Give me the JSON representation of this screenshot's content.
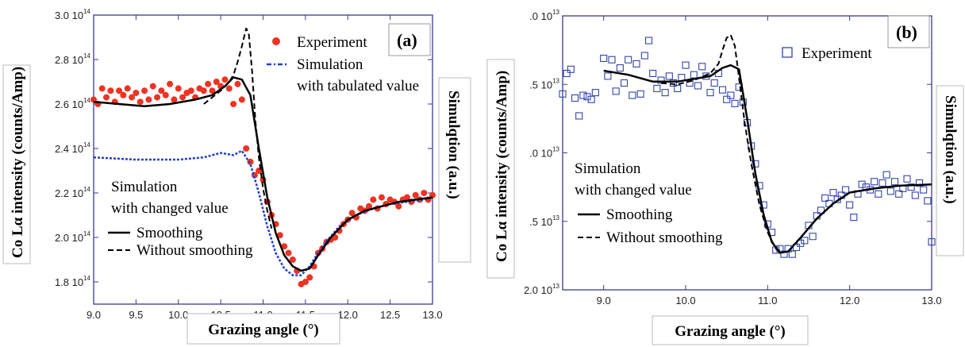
{
  "colors": {
    "experiment_a": "#ee3322",
    "experiment_b": "#3344aa",
    "simulation_tabulated": "#1f3fcf",
    "smoothing": "#000000",
    "without_smoothing": "#000000",
    "frame": "#3a3a8c"
  },
  "chart_data": [
    {
      "type": "scatter",
      "panel_label": "(a)",
      "xlabel": "Grazing angle (°)",
      "ylabel": "Co Lα intensity (counts/Amp)",
      "y2label": "Simulqtion (a.u.)",
      "xlim": [
        9.0,
        13.0
      ],
      "ylim": [
        170000000000000.0,
        300000000000000.0
      ],
      "x_ticks": [
        "9.0",
        "9.5",
        "10.0",
        "10.5",
        "11.0",
        "11.5",
        "12.0",
        "12.5",
        "13.0"
      ],
      "y_ticks": [
        {
          "mantissa": "3.0 10",
          "exp": "14",
          "value": 300000000000000.0
        },
        {
          "mantissa": "2.8 10",
          "exp": "14",
          "value": 280000000000000.0
        },
        {
          "mantissa": "2.6 10",
          "exp": "14",
          "value": 260000000000000.0
        },
        {
          "mantissa": "2.4 10",
          "exp": "14",
          "value": 240000000000000.0
        },
        {
          "mantissa": "2.2 10",
          "exp": "14",
          "value": 220000000000000.0
        },
        {
          "mantissa": "2.0 10",
          "exp": "14",
          "value": 200000000000000.0
        },
        {
          "mantissa": "1.8 10",
          "exp": "14",
          "value": 180000000000000.0
        }
      ],
      "legend": {
        "experiment": "Experiment",
        "simulation_line1": "Simulation",
        "simulation_line2": "with tabulated value",
        "changed_line1": "Simulation",
        "changed_line2": "with changed value",
        "smoothing": "Smoothing",
        "without_smoothing": "Without smoothing"
      },
      "series": [
        {
          "name": "Experiment",
          "kind": "points",
          "x": [
            9.0,
            9.05,
            9.1,
            9.15,
            9.2,
            9.25,
            9.3,
            9.35,
            9.4,
            9.45,
            9.5,
            9.55,
            9.6,
            9.65,
            9.7,
            9.75,
            9.8,
            9.85,
            9.9,
            9.95,
            10.0,
            10.05,
            10.1,
            10.15,
            10.2,
            10.25,
            10.3,
            10.35,
            10.4,
            10.45,
            10.5,
            10.55,
            10.6,
            10.65,
            10.7,
            10.75,
            10.8,
            10.85,
            10.9,
            10.95,
            11.0,
            11.05,
            11.1,
            11.15,
            11.2,
            11.25,
            11.3,
            11.35,
            11.4,
            11.45,
            11.5,
            11.55,
            11.6,
            11.65,
            11.7,
            11.75,
            11.8,
            11.85,
            11.9,
            11.95,
            12.0,
            12.05,
            12.1,
            12.15,
            12.2,
            12.25,
            12.3,
            12.35,
            12.4,
            12.45,
            12.5,
            12.55,
            12.6,
            12.65,
            12.7,
            12.75,
            12.8,
            12.85,
            12.9,
            12.95,
            13.0
          ],
          "y": [
            262000000000000.0,
            260000000000000.0,
            267000000000000.0,
            263000000000000.0,
            266000000000000.0,
            261000000000000.0,
            266000000000000.0,
            264000000000000.0,
            267000000000000.0,
            263000000000000.0,
            265000000000000.0,
            261000000000000.0,
            266000000000000.0,
            262000000000000.0,
            268000000000000.0,
            263000000000000.0,
            266000000000000.0,
            264000000000000.0,
            269000000000000.0,
            262000000000000.0,
            267000000000000.0,
            263000000000000.0,
            265000000000000.0,
            266000000000000.0,
            263000000000000.0,
            267000000000000.0,
            266000000000000.0,
            269000000000000.0,
            266000000000000.0,
            270000000000000.0,
            268000000000000.0,
            271000000000000.0,
            267000000000000.0,
            260000000000000.0,
            269000000000000.0,
            262000000000000.0,
            240000000000000.0,
            234000000000000.0,
            228000000000000.0,
            230000000000000.0,
            226000000000000.0,
            216000000000000.0,
            210000000000000.0,
            206000000000000.0,
            201000000000000.0,
            196000000000000.0,
            193000000000000.0,
            190000000000000.0,
            185000000000000.0,
            179000000000000.0,
            180000000000000.0,
            182000000000000.0,
            187000000000000.0,
            193000000000000.0,
            195000000000000.0,
            198000000000000.0,
            199000000000000.0,
            200000000000000.0,
            203000000000000.0,
            206000000000000.0,
            208000000000000.0,
            211000000000000.0,
            209000000000000.0,
            213000000000000.0,
            212000000000000.0,
            214000000000000.0,
            217000000000000.0,
            213000000000000.0,
            218000000000000.0,
            215000000000000.0,
            217000000000000.0,
            216000000000000.0,
            214000000000000.0,
            217000000000000.0,
            218000000000000.0,
            216000000000000.0,
            219000000000000.0,
            217000000000000.0,
            220000000000000.0,
            217000000000000.0,
            219000000000000.0
          ]
        },
        {
          "name": "Simulation with tabulated value",
          "kind": "dash-dot",
          "x": [
            9.0,
            9.5,
            10.0,
            10.3,
            10.5,
            10.65,
            10.75,
            10.85,
            10.95,
            11.05,
            11.15,
            11.25,
            11.35,
            11.45,
            11.55,
            11.7,
            11.9,
            12.1,
            12.3,
            12.5,
            12.7,
            12.9,
            13.0
          ],
          "y": [
            236000000000000.0,
            235000000000000.0,
            235000000000000.0,
            236000000000000.0,
            238000000000000.0,
            237000000000000.0,
            239000000000000.0,
            233000000000000.0,
            220000000000000.0,
            205000000000000.0,
            193000000000000.0,
            186000000000000.0,
            183000000000000.0,
            183000000000000.0,
            187000000000000.0,
            196000000000000.0,
            205000000000000.0,
            210000000000000.0,
            213000000000000.0,
            215000000000000.0,
            216000000000000.0,
            217000000000000.0,
            218000000000000.0
          ]
        },
        {
          "name": "Smoothing",
          "kind": "solid",
          "x": [
            9.0,
            9.3,
            9.6,
            9.9,
            10.2,
            10.4,
            10.55,
            10.65,
            10.75,
            10.85,
            10.95,
            11.05,
            11.15,
            11.25,
            11.35,
            11.45,
            11.55,
            11.65,
            11.8,
            12.0,
            12.2,
            12.4,
            12.6,
            12.8,
            13.0
          ],
          "y": [
            261000000000000.0,
            260000000000000.0,
            259000000000000.0,
            260000000000000.0,
            262000000000000.0,
            264000000000000.0,
            268000000000000.0,
            272000000000000.0,
            271000000000000.0,
            264000000000000.0,
            240000000000000.0,
            218000000000000.0,
            202000000000000.0,
            192000000000000.0,
            187000000000000.0,
            185000000000000.0,
            186000000000000.0,
            192000000000000.0,
            200000000000000.0,
            208000000000000.0,
            212000000000000.0,
            214000000000000.0,
            216000000000000.0,
            217000000000000.0,
            218000000000000.0
          ]
        },
        {
          "name": "Without smoothing",
          "kind": "dashed",
          "x": [
            10.3,
            10.4,
            10.5,
            10.6,
            10.65,
            10.7,
            10.75,
            10.8,
            10.83,
            10.87,
            10.91,
            10.95,
            11.0,
            11.05,
            11.1
          ],
          "y": [
            260000000000000.0,
            263000000000000.0,
            266000000000000.0,
            270000000000000.0,
            273000000000000.0,
            279000000000000.0,
            286000000000000.0,
            294000000000000.0,
            292000000000000.0,
            275000000000000.0,
            252000000000000.0,
            236000000000000.0,
            222000000000000.0,
            212000000000000.0,
            204000000000000.0
          ]
        }
      ]
    },
    {
      "type": "scatter",
      "panel_label": "(b)",
      "xlabel": "Grazing angle (°)",
      "ylabel": "Co Lα intensity (counts/Amp)",
      "y2label": "Simulqtion (a.u.)",
      "xlim": [
        8.5,
        13.0
      ],
      "ylim": [
        20000000000000.0,
        40000000000000.0
      ],
      "x_ticks": [
        "9.0",
        "10.0",
        "11.0",
        "12.0",
        "13.0"
      ],
      "y_ticks": [
        {
          "mantissa": ".0 10",
          "exp": "13",
          "value": 40000000000000.0
        },
        {
          "mantissa": ".5 10",
          "exp": "13",
          "value": 35000000000000.0
        },
        {
          "mantissa": ".0 10",
          "exp": "13",
          "value": 30000000000000.0
        },
        {
          "mantissa": ".5 10",
          "exp": "13",
          "value": 25000000000000.0
        },
        {
          "mantissa": "2.0 10",
          "exp": "13",
          "value": 20000000000000.0
        }
      ],
      "legend": {
        "experiment": "Experiment",
        "changed_line1": "Simulation",
        "changed_line2": "with changed value",
        "smoothing": "Smoothing",
        "without_smoothing": "Without smoothing"
      },
      "series": [
        {
          "name": "Experiment",
          "kind": "points",
          "x": [
            8.5,
            8.55,
            8.6,
            8.65,
            8.7,
            8.75,
            8.8,
            8.85,
            8.9,
            9.0,
            9.05,
            9.1,
            9.15,
            9.2,
            9.25,
            9.3,
            9.35,
            9.4,
            9.45,
            9.5,
            9.55,
            9.6,
            9.65,
            9.7,
            9.75,
            9.8,
            9.85,
            9.9,
            9.95,
            10.0,
            10.05,
            10.1,
            10.15,
            10.2,
            10.25,
            10.3,
            10.35,
            10.4,
            10.45,
            10.5,
            10.55,
            10.6,
            10.65,
            10.7,
            10.75,
            10.8,
            10.85,
            10.9,
            10.95,
            11.0,
            11.05,
            11.1,
            11.15,
            11.2,
            11.25,
            11.3,
            11.35,
            11.4,
            11.45,
            11.5,
            11.55,
            11.6,
            11.65,
            11.7,
            11.75,
            11.8,
            11.85,
            11.9,
            11.95,
            12.0,
            12.05,
            12.1,
            12.15,
            12.2,
            12.25,
            12.3,
            12.35,
            12.4,
            12.45,
            12.5,
            12.55,
            12.6,
            12.65,
            12.7,
            12.75,
            12.8,
            12.85,
            12.9,
            12.95,
            13.0
          ],
          "y": [
            34300000000000.0,
            35800000000000.0,
            36100000000000.0,
            34000000000000.0,
            32700000000000.0,
            34200000000000.0,
            34100000000000.0,
            33900000000000.0,
            34400000000000.0,
            36900000000000.0,
            35600000000000.0,
            36800000000000.0,
            34500000000000.0,
            36200000000000.0,
            35100000000000.0,
            36800000000000.0,
            34200000000000.0,
            36500000000000.0,
            34300000000000.0,
            37100000000000.0,
            38200000000000.0,
            35800000000000.0,
            34700000000000.0,
            35300000000000.0,
            34400000000000.0,
            35600000000000.0,
            35100000000000.0,
            34700000000000.0,
            35500000000000.0,
            36400000000000.0,
            35100000000000.0,
            35700000000000.0,
            34900000000000.0,
            36300000000000.0,
            35600000000000.0,
            34400000000000.0,
            35100000000000.0,
            35800000000000.0,
            34600000000000.0,
            33900000000000.0,
            34200000000000.0,
            33600000000000.0,
            34800000000000.0,
            33700000000000.0,
            32200000000000.0,
            30500000000000.0,
            29200000000000.0,
            27600000000000.0,
            26200000000000.0,
            24800000000000.0,
            24200000000000.0,
            22900000000000.0,
            23000000000000.0,
            22600000000000.0,
            23000000000000.0,
            22600000000000.0,
            23100000000000.0,
            23400000000000.0,
            23600000000000.0,
            24700000000000.0,
            23900000000000.0,
            25400000000000.0,
            25800000000000.0,
            26700000000000.0,
            26300000000000.0,
            27100000000000.0,
            26600000000000.0,
            26900000000000.0,
            27300000000000.0,
            26200000000000.0,
            25300000000000.0,
            27000000000000.0,
            27700000000000.0,
            27500000000000.0,
            27300000000000.0,
            27900000000000.0,
            27000000000000.0,
            27800000000000.0,
            28400000000000.0,
            27200000000000.0,
            27900000000000.0,
            27000000000000.0,
            27400000000000.0,
            28100000000000.0,
            27500000000000.0,
            26900000000000.0,
            27800000000000.0,
            27300000000000.0,
            26500000000000.0,
            23500000000000.0
          ]
        },
        {
          "name": "Smoothing",
          "kind": "solid",
          "x": [
            9.0,
            9.3,
            9.6,
            9.9,
            10.1,
            10.3,
            10.45,
            10.55,
            10.65,
            10.75,
            10.85,
            10.95,
            11.05,
            11.15,
            11.25,
            11.4,
            11.6,
            11.8,
            12.0,
            12.3,
            12.6,
            13.0
          ],
          "y": [
            36000000000000.0,
            35700000000000.0,
            35200000000000.0,
            35200000000000.0,
            35400000000000.0,
            35600000000000.0,
            36200000000000.0,
            36400000000000.0,
            36100000000000.0,
            32500000000000.0,
            28500000000000.0,
            25500000000000.0,
            23500000000000.0,
            22700000000000.0,
            22800000000000.0,
            23800000000000.0,
            25200000000000.0,
            26300000000000.0,
            27100000000000.0,
            27400000000000.0,
            27600000000000.0,
            27700000000000.0
          ]
        },
        {
          "name": "Without smoothing",
          "kind": "dashed",
          "x": [
            9.7,
            9.9,
            10.1,
            10.3,
            10.4,
            10.45,
            10.5,
            10.55,
            10.6,
            10.65,
            10.72,
            10.8,
            10.9,
            11.0,
            11.1,
            11.2
          ],
          "y": [
            35100000000000.0,
            35000000000000.0,
            35300000000000.0,
            35800000000000.0,
            36500000000000.0,
            37500000000000.0,
            38400000000000.0,
            38600000000000.0,
            37800000000000.0,
            35500000000000.0,
            32200000000000.0,
            29200000000000.0,
            26200000000000.0,
            24200000000000.0,
            23000000000000.0,
            22700000000000.0
          ]
        }
      ]
    }
  ]
}
